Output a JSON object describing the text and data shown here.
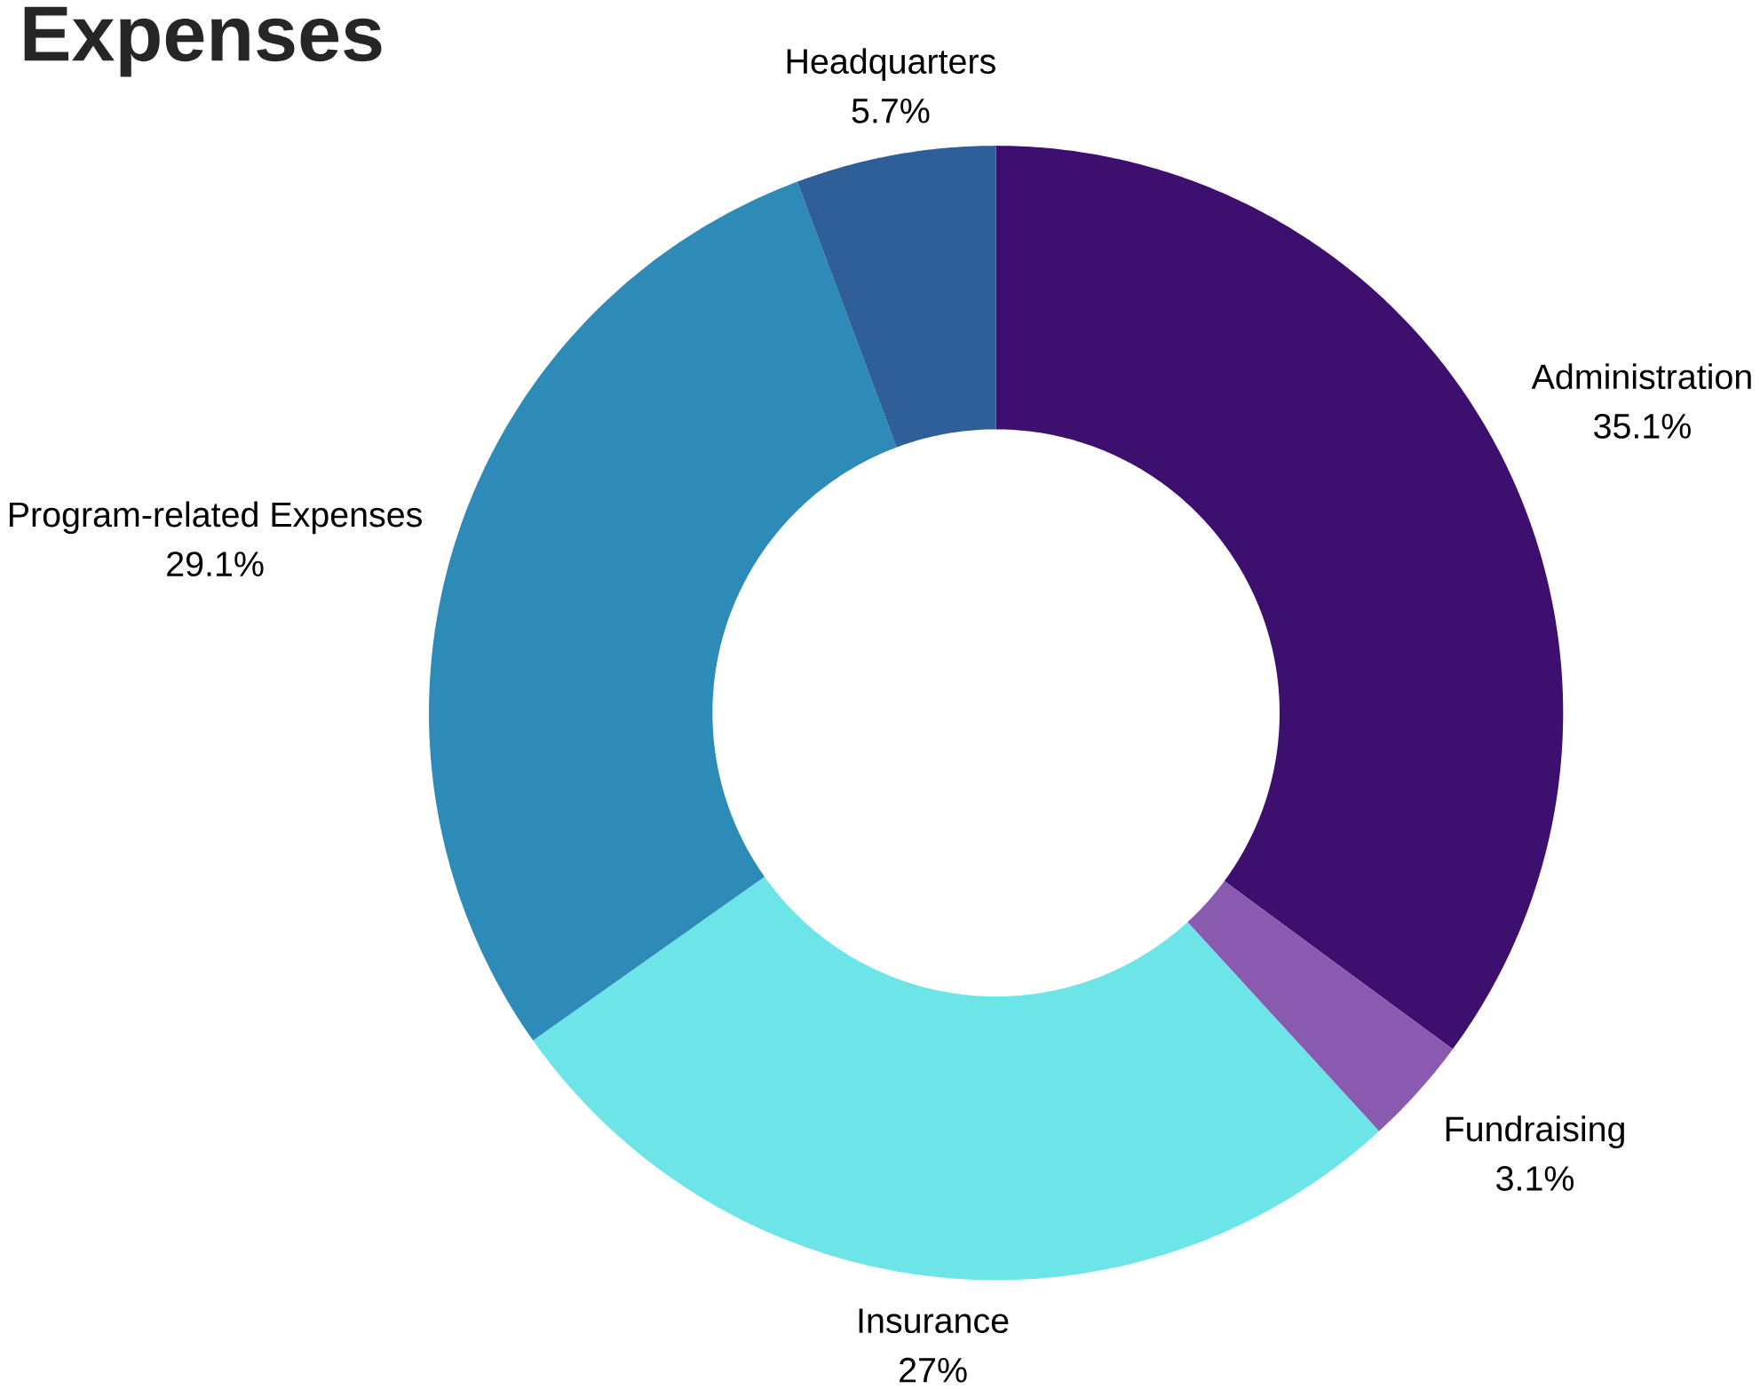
{
  "chart_data": {
    "type": "donut",
    "title": "Expenses",
    "categories": [
      "Administration",
      "Fundraising",
      "Insurance",
      "Program-related Expenses",
      "Headquarters"
    ],
    "values": [
      35.1,
      3.1,
      27,
      29.1,
      5.7
    ],
    "value_labels": [
      "35.1%",
      "3.1%",
      "27%",
      "29.1%",
      "5.7%"
    ],
    "colors": [
      "#3d0f6e",
      "#8a5ab0",
      "#6ce4e8",
      "#2e8bb8",
      "#2e5f98"
    ]
  }
}
